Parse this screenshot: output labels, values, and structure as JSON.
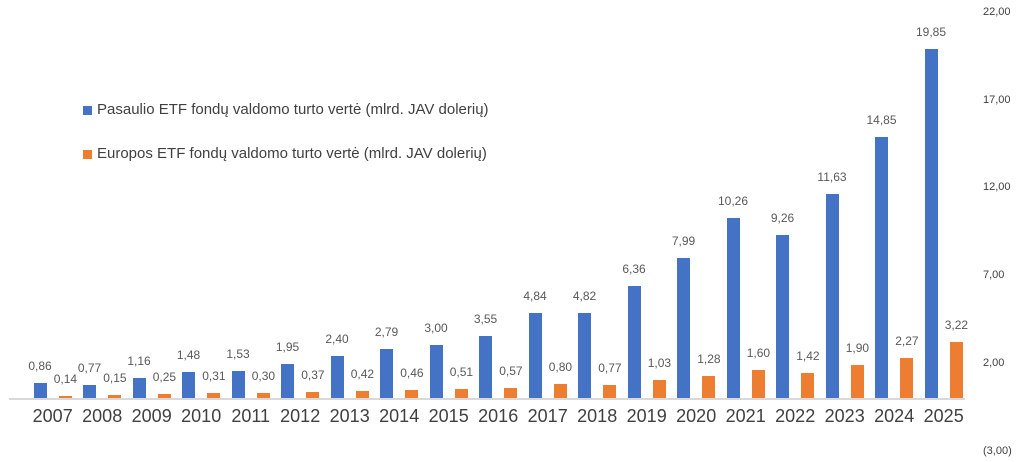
{
  "chart_data": {
    "type": "bar",
    "title": "",
    "categories": [
      "2007",
      "2008",
      "2009",
      "2010",
      "2011",
      "2012",
      "2013",
      "2014",
      "2015",
      "2016",
      "2017",
      "2018",
      "2019",
      "2020",
      "2021",
      "2022",
      "2023",
      "2024",
      "2025"
    ],
    "series": [
      {
        "name": "Pasaulio ETF fondų valdomo turto vertė (mlrd. JAV dolerių)",
        "color": "#4472C4",
        "values": [
          0.86,
          0.77,
          1.16,
          1.48,
          1.53,
          1.95,
          2.4,
          2.79,
          3.0,
          3.55,
          4.84,
          4.82,
          6.36,
          7.99,
          10.26,
          9.26,
          11.63,
          14.85,
          19.85
        ],
        "labels": [
          "0,86",
          "0,77",
          "1,16",
          "1,48",
          "1,53",
          "1,95",
          "2,40",
          "2,79",
          "3,00",
          "3,55",
          "4,84",
          "4,82",
          "6,36",
          "7,99",
          "10,26",
          "9,26",
          "11,63",
          "14,85",
          "19,85"
        ]
      },
      {
        "name": "Europos ETF fondų valdomo turto vertė (mlrd. JAV dolerių)",
        "color": "#ED7D31",
        "values": [
          0.14,
          0.15,
          0.25,
          0.31,
          0.3,
          0.37,
          0.42,
          0.46,
          0.51,
          0.57,
          0.8,
          0.77,
          1.03,
          1.28,
          1.6,
          1.42,
          1.9,
          2.27,
          3.22
        ],
        "labels": [
          "0,14",
          "0,15",
          "0,25",
          "0,31",
          "0,30",
          "0,37",
          "0,42",
          "0,46",
          "0,51",
          "0,57",
          "0,80",
          "0,77",
          "1,03",
          "1,28",
          "1,60",
          "1,42",
          "1,90",
          "2,27",
          "3,22"
        ]
      }
    ],
    "y_axis": {
      "side": "right",
      "min": -3,
      "max": 22,
      "ticks": [
        {
          "value": 22,
          "label": "22,00"
        },
        {
          "value": 17,
          "label": "17,00"
        },
        {
          "value": 12,
          "label": "12,00"
        },
        {
          "value": 7,
          "label": "7,00"
        },
        {
          "value": 2,
          "label": "2,00"
        },
        {
          "value": -3,
          "label": "(3,00)"
        }
      ]
    },
    "legend_position": "inside-top-left",
    "grid": false,
    "colors": {
      "series_world": "#4472C4",
      "series_europe": "#ED7D31",
      "data_label": "#595959",
      "axis_label": "#404040",
      "axis_line": "#d9d9d9",
      "background": "#ffffff"
    }
  }
}
